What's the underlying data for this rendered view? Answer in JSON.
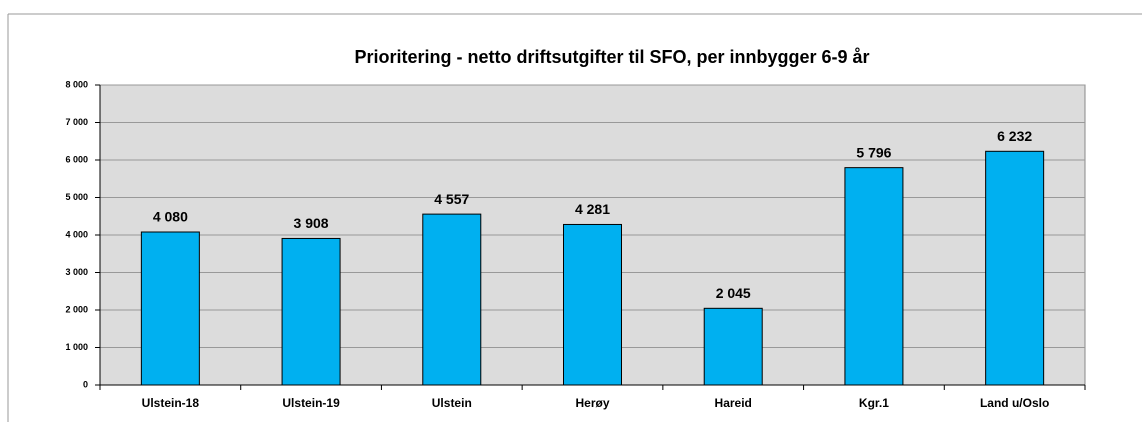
{
  "chart_data": {
    "type": "bar",
    "title": "Prioritering - netto driftsutgifter til SFO, per innbygger 6-9 år",
    "categories": [
      "Ulstein-18",
      "Ulstein-19",
      "Ulstein",
      "Herøy",
      "Hareid",
      "Kgr.1",
      "Land u/Oslo"
    ],
    "values": [
      4080,
      3908,
      4557,
      4281,
      2045,
      5796,
      6232
    ],
    "value_labels": [
      "4 080",
      "3 908",
      "4 557",
      "4 281",
      "2 045",
      "5 796",
      "6 232"
    ],
    "color": "#00b0f0",
    "ylim": [
      0,
      8000
    ],
    "yticks": [
      0,
      {
        "value": 1000,
        "label": "1 000"
      },
      {
        "value": 2000,
        "label": "2 000"
      },
      {
        "value": 3000,
        "label": "3 000"
      },
      {
        "value": 4000,
        "label": "4 000"
      },
      {
        "value": 5000,
        "label": "5 000"
      },
      {
        "value": 6000,
        "label": "6 000"
      },
      {
        "value": 7000,
        "label": "7 000"
      },
      {
        "value": 8000,
        "label": "8 000"
      }
    ],
    "grid": true
  }
}
